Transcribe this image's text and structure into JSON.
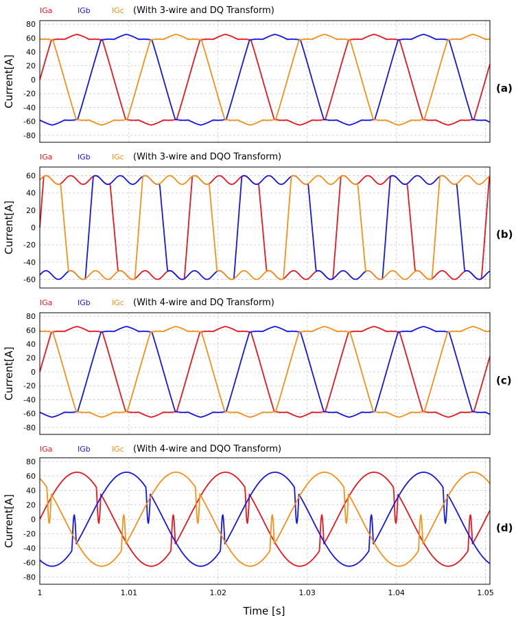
{
  "colors": {
    "IGa": "#e8141e",
    "IGb": "#1414e6",
    "IGc": "#f39016",
    "grid": "#c8c8c8",
    "frame": "#000000"
  },
  "xlabel": "Time [s]",
  "x_ticks": [
    "1",
    "1.01",
    "1.02",
    "1.03",
    "1.04",
    "1.05"
  ],
  "chart_data": [
    {
      "type": "line",
      "panel_label": "(a)",
      "title": "(With 3-wire and DQ Transform)",
      "ylabel": "Current[A]",
      "xlim": [
        1.0,
        1.0505
      ],
      "ylim": [
        -90,
        85
      ],
      "y_ticks": [
        "80",
        "60",
        "40",
        "20",
        "0",
        "-20",
        "-40",
        "-60",
        "-80"
      ],
      "y_tick_values": [
        80,
        60,
        40,
        20,
        0,
        -20,
        -40,
        -60,
        -80
      ],
      "legend": [
        "IGa",
        "IGb",
        "IGc"
      ],
      "series": [
        {
          "name": "IGa",
          "waveform": "trapezoidal",
          "amplitude": 50,
          "peak": 72,
          "phase_deg": 0
        },
        {
          "name": "IGb",
          "waveform": "trapezoidal",
          "amplitude": 50,
          "peak": 72,
          "phase_deg": -120
        },
        {
          "name": "IGc",
          "waveform": "trapezoidal",
          "amplitude": 50,
          "peak": 72,
          "phase_deg": 120
        }
      ]
    },
    {
      "type": "line",
      "panel_label": "(b)",
      "title": "(With 3-wire and DQO Transform)",
      "ylabel": "Current[A]",
      "xlim": [
        1.0,
        1.0505
      ],
      "ylim": [
        -70,
        70
      ],
      "y_ticks": [
        "60",
        "40",
        "20",
        "0",
        "-20",
        "-40",
        "-60"
      ],
      "y_tick_values": [
        60,
        40,
        20,
        0,
        -20,
        -40,
        -60
      ],
      "legend": [
        "IGa",
        "IGb",
        "IGc"
      ],
      "series": [
        {
          "name": "IGa",
          "waveform": "square",
          "amplitude": 55,
          "peak": 60,
          "phase_deg": 0
        },
        {
          "name": "IGb",
          "waveform": "square",
          "amplitude": 55,
          "peak": 60,
          "phase_deg": -120
        },
        {
          "name": "IGc",
          "waveform": "square",
          "amplitude": 55,
          "peak": 60,
          "phase_deg": 120
        }
      ]
    },
    {
      "type": "line",
      "panel_label": "(c)",
      "title": "(With 4-wire and DQ Transform)",
      "ylabel": "Current[A]",
      "xlim": [
        1.0,
        1.0505
      ],
      "ylim": [
        -90,
        85
      ],
      "y_ticks": [
        "80",
        "60",
        "40",
        "20",
        "0",
        "-20",
        "-40",
        "-60",
        "-80"
      ],
      "y_tick_values": [
        80,
        60,
        40,
        20,
        0,
        -20,
        -40,
        -60,
        -80
      ],
      "legend": [
        "IGa",
        "IGb",
        "IGc"
      ],
      "series": [
        {
          "name": "IGa",
          "waveform": "trapezoidal",
          "amplitude": 50,
          "peak": 72,
          "phase_deg": 0
        },
        {
          "name": "IGb",
          "waveform": "trapezoidal",
          "amplitude": 50,
          "peak": 72,
          "phase_deg": -120
        },
        {
          "name": "IGc",
          "waveform": "trapezoidal",
          "amplitude": 50,
          "peak": 72,
          "phase_deg": 120
        }
      ]
    },
    {
      "type": "line",
      "panel_label": "(d)",
      "title": "(With 4-wire and DQO Transform)",
      "ylabel": "Current[A]",
      "xlim": [
        1.0,
        1.0505
      ],
      "ylim": [
        -90,
        85
      ],
      "y_ticks": [
        "80",
        "60",
        "40",
        "20",
        "0",
        "-20",
        "-40",
        "-60",
        "-80"
      ],
      "y_tick_values": [
        80,
        60,
        40,
        20,
        0,
        -20,
        -40,
        -60,
        -80
      ],
      "legend": [
        "IGa",
        "IGb",
        "IGc"
      ],
      "series": [
        {
          "name": "IGa",
          "waveform": "sinusoidal",
          "amplitude": 65,
          "peak": 65,
          "phase_deg": 0
        },
        {
          "name": "IGb",
          "waveform": "sinusoidal",
          "amplitude": 65,
          "peak": 65,
          "phase_deg": -120
        },
        {
          "name": "IGc",
          "waveform": "sinusoidal",
          "amplitude": 65,
          "peak": 65,
          "phase_deg": 120
        }
      ]
    }
  ]
}
